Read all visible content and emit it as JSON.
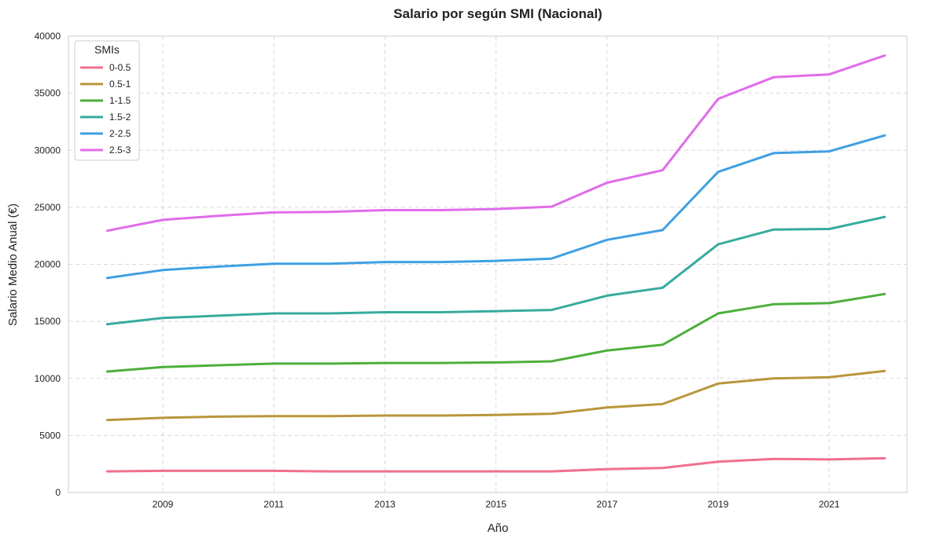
{
  "chart_data": {
    "type": "line",
    "title": "Salario por según SMI (Nacional)",
    "xlabel": "Año",
    "ylabel": "Salario Medio Anual (€)",
    "xlim": [
      2007.3,
      2022.4
    ],
    "ylim": [
      0,
      40000
    ],
    "x_ticks": [
      2009,
      2011,
      2013,
      2015,
      2017,
      2019,
      2021
    ],
    "y_ticks": [
      0,
      5000,
      10000,
      15000,
      20000,
      25000,
      30000,
      35000,
      40000
    ],
    "grid": true,
    "legend": {
      "title": "SMIs",
      "position": "top-left"
    },
    "x": [
      2008,
      2009,
      2010,
      2011,
      2012,
      2013,
      2014,
      2015,
      2016,
      2017,
      2018,
      2019,
      2020,
      2021,
      2022
    ],
    "series": [
      {
        "name": "0-0.5",
        "color": "#f0708d",
        "values": [
          1850,
          1900,
          1900,
          1900,
          1850,
          1850,
          1850,
          1850,
          1850,
          2050,
          2150,
          2700,
          2950,
          2900,
          3000
        ]
      },
      {
        "name": "0.5-1",
        "color": "#b8963a",
        "values": [
          6350,
          6550,
          6650,
          6700,
          6700,
          6750,
          6750,
          6800,
          6900,
          7450,
          7750,
          9550,
          10000,
          10100,
          10650
        ]
      },
      {
        "name": "1-1.5",
        "color": "#4daf3c",
        "values": [
          10600,
          11000,
          11150,
          11300,
          11300,
          11350,
          11350,
          11400,
          11500,
          12450,
          12950,
          15700,
          16500,
          16600,
          17400
        ]
      },
      {
        "name": "1.5-2",
        "color": "#37ab9c",
        "values": [
          14750,
          15300,
          15500,
          15700,
          15700,
          15800,
          15800,
          15900,
          16000,
          17250,
          17950,
          21750,
          23050,
          23100,
          24150
        ]
      },
      {
        "name": "2-2.5",
        "color": "#3fa0e2",
        "values": [
          18800,
          19500,
          19800,
          20050,
          20050,
          20200,
          20200,
          20300,
          20500,
          22150,
          23000,
          28100,
          29750,
          29900,
          31300
        ]
      },
      {
        "name": "2.5-3",
        "color": "#e06cea",
        "values": [
          22950,
          23900,
          24250,
          24550,
          24600,
          24750,
          24750,
          24850,
          25050,
          27150,
          28250,
          34500,
          36400,
          36650,
          38300
        ]
      }
    ]
  }
}
